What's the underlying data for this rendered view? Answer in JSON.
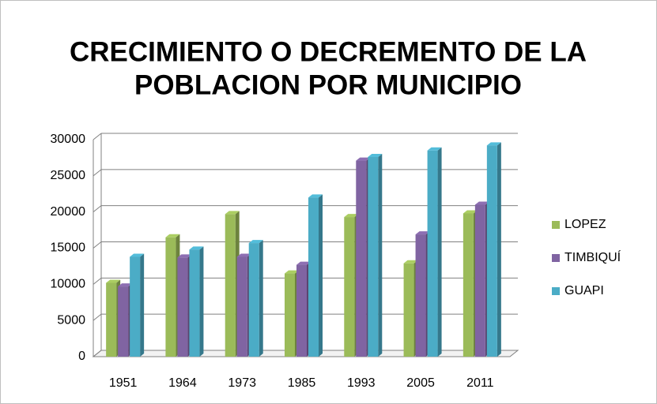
{
  "chart_data": {
    "type": "bar3d",
    "title": [
      "CRECIMIENTO O DECREMENTO DE LA",
      "POBLACION POR MUNICIPIO"
    ],
    "categories": [
      "1951",
      "1964",
      "1973",
      "1985",
      "1993",
      "2005",
      "2011"
    ],
    "series": [
      {
        "name": "LOPEZ",
        "color": "#9bbb59",
        "values": [
          10200,
          16500,
          19700,
          11500,
          19300,
          12900,
          19800
        ]
      },
      {
        "name": "TIMBIQUÍ",
        "color": "#8064a2",
        "values": [
          9700,
          13700,
          13800,
          12700,
          27100,
          16900,
          21000
        ]
      },
      {
        "name": "GUAPI",
        "color": "#4bacc6",
        "values": [
          13800,
          14800,
          15700,
          22000,
          27600,
          28500,
          29200
        ]
      }
    ],
    "ylim": [
      0,
      30000
    ],
    "yticks": [
      0,
      5000,
      10000,
      15000,
      20000,
      25000,
      30000
    ],
    "grid": true,
    "legend": "right"
  }
}
